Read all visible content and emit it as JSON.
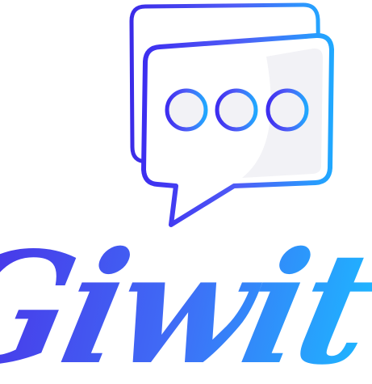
{
  "logo": {
    "wordmark": "Giwit",
    "icon": "chat-bubble-icon",
    "typing_dots": 3,
    "colors": {
      "gradient_start": "#3d2ef0",
      "gradient_mid": "#4f5cf6",
      "gradient_end": "#20a8ff",
      "bubble_fill": "#f2f2f6"
    }
  }
}
